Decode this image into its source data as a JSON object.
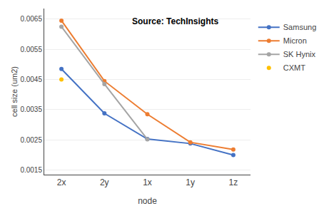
{
  "chart_data": {
    "type": "line",
    "xlabel": "node",
    "ylabel": "cell size (um2)",
    "annotation": "Source: TechInsights",
    "categories": [
      "2x",
      "2y",
      "1x",
      "1y",
      "1z"
    ],
    "series": [
      {
        "name": "Samsung",
        "color": "#4472C4",
        "marker": "circle",
        "line_style": "solid",
        "values": [
          0.00485,
          0.00338,
          0.00253,
          0.00238,
          0.002
        ]
      },
      {
        "name": "Micron",
        "color": "#ED7D31",
        "marker": "circle",
        "line_style": "solid",
        "values": [
          0.00645,
          0.00445,
          0.00335,
          0.00242,
          0.00218
        ]
      },
      {
        "name": "SK Hynix",
        "color": "#A5A5A5",
        "marker": "circle",
        "line_style": "solid",
        "values": [
          0.00625,
          0.00435,
          0.00252,
          null,
          null
        ]
      },
      {
        "name": "CXMT",
        "color": "#FFC000",
        "marker": "circle",
        "line_style": "none",
        "values": [
          0.0045,
          null,
          null,
          null,
          null
        ]
      }
    ],
    "ylim": [
      0.00135,
      0.00685
    ],
    "yticks": [
      0.0015,
      0.0025,
      0.0035,
      0.0045,
      0.0055,
      0.0065
    ],
    "grid": true,
    "legend": "right"
  }
}
